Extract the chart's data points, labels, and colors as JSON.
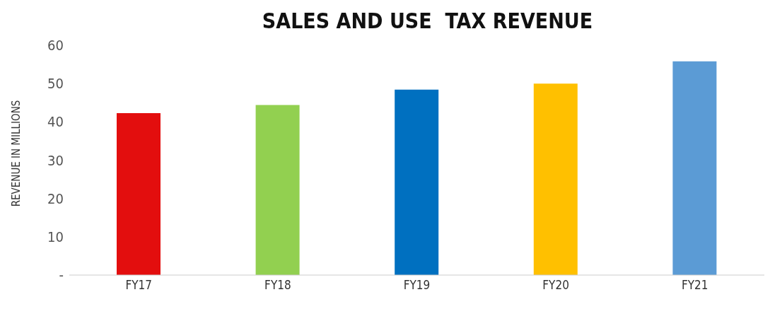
{
  "chart_data": {
    "type": "bar",
    "title": "SALES AND USE  TAX REVENUE",
    "ylabel": "REVENUE IN MILLIONS",
    "categories": [
      "FY17",
      "FY18",
      "FY19",
      "FY20",
      "FY21"
    ],
    "values": [
      42.3,
      44.4,
      48.4,
      50.0,
      55.8
    ],
    "colors": [
      "#e30e0e",
      "#92d050",
      "#0070c0",
      "#ffc000",
      "#5b9bd5"
    ],
    "ylim": [
      0,
      60
    ],
    "yticks": [
      {
        "value": 0,
        "label": "-"
      },
      10,
      20,
      30,
      40,
      50,
      60
    ],
    "grid": false,
    "legend": false
  }
}
